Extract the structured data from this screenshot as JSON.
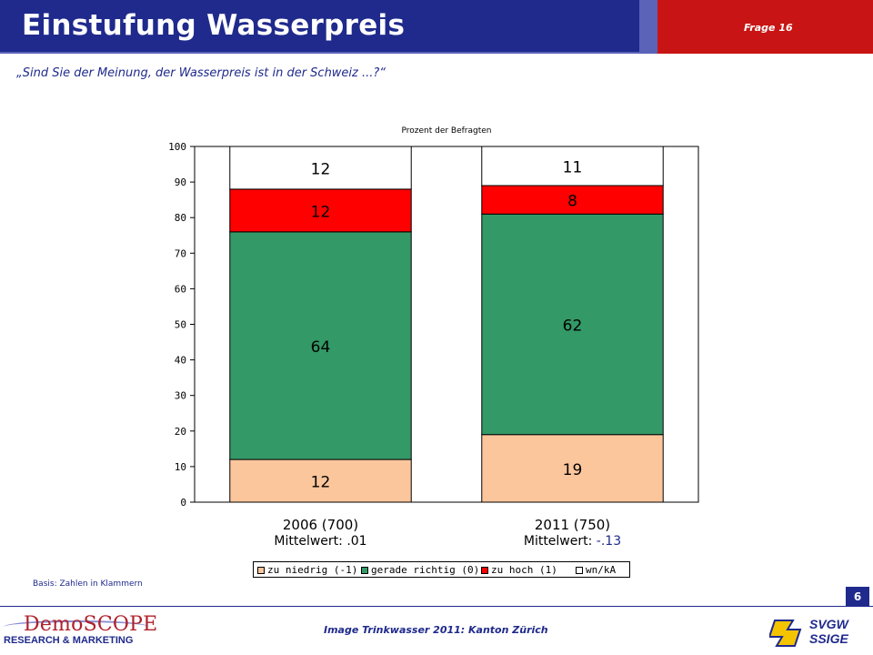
{
  "header": {
    "title": "Einstufung Wasserpreis",
    "question_no": "Frage 16"
  },
  "question": "„Sind Sie der Meinung, der Wasserpreis ist in der Schweiz ...?“",
  "chart_data": {
    "type": "bar",
    "stacked": true,
    "title": "Prozent der Befragten",
    "ylim": [
      0,
      100
    ],
    "yticks": [
      0,
      10,
      20,
      30,
      40,
      50,
      60,
      70,
      80,
      90,
      100
    ],
    "grid": false,
    "legend_position": "bottom",
    "categories": [
      {
        "line1": "2006 (700)",
        "line2_label": "Mittelwert:",
        "line2_value": ".01"
      },
      {
        "line1": "2011 (750)",
        "line2_label": "Mittelwert:",
        "line2_value": "-.13"
      }
    ],
    "series": [
      {
        "name": "zu niedrig (-1)",
        "color": "#fcc69c",
        "values": [
          12,
          19
        ]
      },
      {
        "name": "gerade richtig (0)",
        "color": "#339966",
        "values": [
          64,
          62
        ]
      },
      {
        "name": "zu hoch (1)",
        "color": "#ff0000",
        "values": [
          12,
          8
        ]
      },
      {
        "name": "wn/kA",
        "color": "#ffffff",
        "values": [
          12,
          11
        ]
      }
    ]
  },
  "basis": "Basis: Zahlen in Klammern",
  "page_number": "6",
  "footer": "Image Trinkwasser 2011: Kanton Zürich",
  "logos": {
    "demoscope_top": "DemoSCOPE",
    "demoscope_bottom": "RESEARCH & MARKETING",
    "svgw_line1": "SVGW",
    "svgw_line2": "SSIGE"
  },
  "colors": {
    "brand_blue": "#1f2a8c",
    "brand_red": "#c81414",
    "mean_value_2011": "#1f2a8c"
  }
}
